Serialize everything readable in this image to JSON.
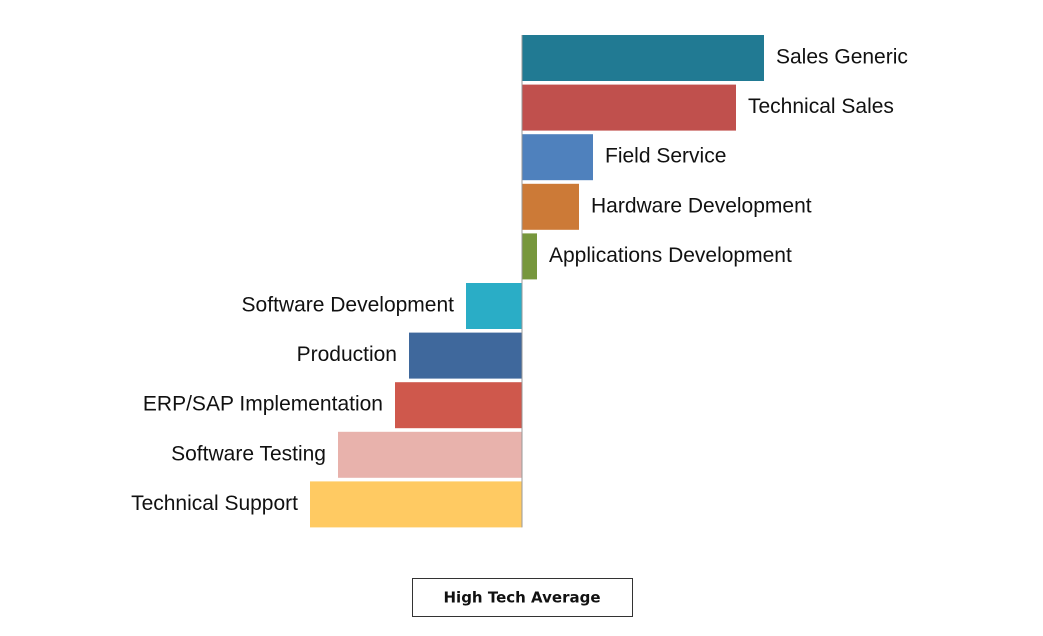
{
  "chart_data": {
    "type": "diverging-bar",
    "categories": [
      "Sales Generic",
      "Technical Sales",
      "Field Service",
      "Hardware Development",
      "Applications Development",
      "Software Development",
      "Production",
      "ERP/SAP Implementation",
      "Software Testing",
      "Technical Support"
    ],
    "values": [
      242,
      214,
      71,
      57,
      15,
      -56,
      -113,
      -127,
      -184,
      -212
    ],
    "colors": [
      "#217a93",
      "#c0504d",
      "#4f81bd",
      "#cc7a37",
      "#77973d",
      "#2aadc6",
      "#3f689c",
      "#cf584c",
      "#e8b2ac",
      "#ffca62"
    ],
    "xlim": [
      -250,
      250
    ],
    "annotation": "High Tech Average"
  }
}
